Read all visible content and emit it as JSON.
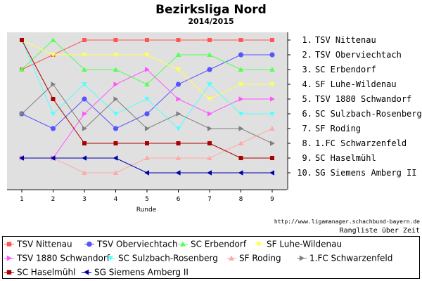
{
  "chart_data": {
    "type": "line",
    "title": "Bezirksliga Nord",
    "subtitle": "2014/2015",
    "xlabel": "Runde",
    "x": [
      1,
      2,
      3,
      4,
      5,
      6,
      7,
      8,
      9
    ],
    "ylim": [
      1,
      10
    ],
    "y_inverted": true,
    "grid": false,
    "rank_labels": [
      "1. TSV Nittenau",
      "2. TSV Oberviechtach",
      "3. SC Erbendorf",
      "4. SF Luhe-Wildenau",
      "5. TSV 1880 Schwandorf",
      "6. SC Sulzbach-Rosenberg",
      "7. SF Roding",
      "8. 1.FC Schwarzenfeld",
      "9. SC Haselmühl",
      "10. SG Siemens Amberg II"
    ],
    "series": [
      {
        "name": "TSV Nittenau",
        "color": "#ff5555",
        "marker": "square",
        "values": [
          3,
          2,
          1,
          1,
          1,
          1,
          1,
          1,
          1
        ]
      },
      {
        "name": "TSV Oberviechtach",
        "color": "#5555ff",
        "marker": "circle",
        "values": [
          6,
          7,
          5,
          7,
          6,
          4,
          3,
          2,
          2
        ]
      },
      {
        "name": "SC Erbendorf",
        "color": "#55ff55",
        "marker": "triangle-up",
        "values": [
          3,
          1,
          3,
          3,
          4,
          2,
          2,
          3,
          3
        ]
      },
      {
        "name": "SF Luhe-Wildenau",
        "color": "#ffff55",
        "marker": "triangle-down",
        "values": [
          1,
          2,
          2,
          2,
          2,
          3,
          5,
          4,
          4
        ]
      },
      {
        "name": "TSV 1880 Schwandorf",
        "color": "#ff55ff",
        "marker": "triangle-right",
        "values": [
          9,
          9,
          6,
          4,
          3,
          5,
          6,
          5,
          5
        ]
      },
      {
        "name": "SC Sulzbach-Rosenberg",
        "color": "#55ffff",
        "marker": "triangle-down",
        "values": [
          1,
          6,
          4,
          6,
          5,
          7,
          4,
          6,
          6
        ]
      },
      {
        "name": "SF Roding",
        "color": "#ffaaaa",
        "marker": "triangle-up",
        "values": [
          9,
          9,
          10,
          10,
          9,
          9,
          9,
          8,
          7
        ]
      },
      {
        "name": "1.FC Schwarzenfeld",
        "color": "#808080",
        "marker": "triangle-right",
        "values": [
          6,
          4,
          7,
          5,
          7,
          6,
          7,
          7,
          8
        ]
      },
      {
        "name": "SC Haselmühl",
        "color": "#aa0000",
        "marker": "square",
        "values": [
          1,
          5,
          8,
          8,
          8,
          8,
          8,
          9,
          9
        ]
      },
      {
        "name": "SG Siemens Amberg II",
        "color": "#0000aa",
        "marker": "triangle-left",
        "values": [
          9,
          9,
          9,
          9,
          10,
          10,
          10,
          10,
          10
        ]
      }
    ]
  },
  "credit": {
    "url": "http://www.ligamanager.schachbund-bayern.de",
    "caption": "Rangliste über Zeit"
  }
}
